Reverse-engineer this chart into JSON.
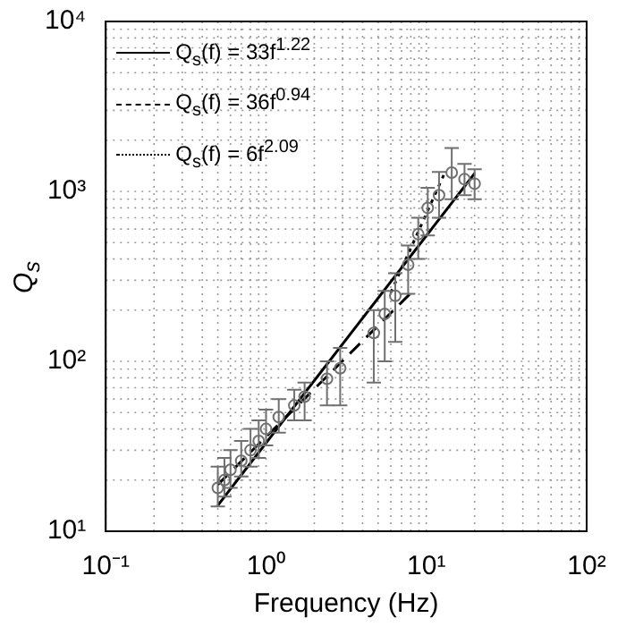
{
  "chart_data": {
    "type": "scatter",
    "xlabel": "Frequency (Hz)",
    "ylabel": "Q$_{s}$",
    "log": "xy",
    "grid": true,
    "legend": "top left",
    "xlim": [
      0.1,
      100
    ],
    "ylim": [
      10,
      10000
    ],
    "xticks": [
      {
        "value": 0.1,
        "label": "10⁻¹"
      },
      {
        "value": 1,
        "label": "10⁰"
      },
      {
        "value": 10,
        "label": "10¹"
      },
      {
        "value": 100,
        "label": "10²"
      }
    ],
    "yticks": [
      {
        "value": 10,
        "label": "10¹"
      },
      {
        "value": 100,
        "label": "10²"
      },
      {
        "value": 1000,
        "label": "10³"
      },
      {
        "value": 10000,
        "label": "10⁴"
      }
    ],
    "series": [
      {
        "color": "#707070",
        "marker": "circle",
        "x": [
          0.5,
          0.55,
          0.6,
          0.7,
          0.8,
          0.9,
          1.0,
          1.2,
          1.5,
          1.74,
          2.4,
          2.9,
          4.7,
          5.5,
          6.4,
          7.7,
          8.9,
          10.2,
          12,
          14.4,
          17.3,
          20
        ],
        "values": [
          18,
          20,
          23,
          26,
          30,
          34,
          40,
          47,
          55,
          62,
          79,
          91,
          147,
          190,
          243,
          370,
          560,
          800,
          950,
          1290,
          1180,
          1110
        ],
        "errors": [
          [
            14,
            24
          ],
          [
            16,
            27
          ],
          [
            18,
            30
          ],
          [
            21,
            34
          ],
          [
            24,
            40
          ],
          [
            27,
            45
          ],
          [
            32,
            52
          ],
          [
            38,
            60
          ],
          [
            45,
            68
          ],
          [
            45,
            75
          ],
          [
            55,
            100
          ],
          [
            55,
            120
          ],
          [
            75,
            200
          ],
          [
            100,
            260
          ],
          [
            130,
            330
          ],
          [
            250,
            480
          ],
          [
            400,
            700
          ],
          [
            550,
            1050
          ],
          [
            700,
            1300
          ],
          [
            900,
            1800
          ],
          [
            950,
            1450
          ],
          [
            900,
            1350
          ]
        ]
      },
      {
        "type": "line",
        "name": "Q$_{s}$(f) = 33f$^{1.22}$",
        "color": "#000000",
        "line_style": "solid",
        "marker": "none",
        "x": [
          0.5,
          20
        ],
        "values": [
          14.2,
          1277
        ]
      },
      {
        "type": "line",
        "name": "Q$_{s}$(f) = 36f$^{0.94}$",
        "color": "#000000",
        "line_style": "dashed",
        "marker": "none",
        "x": [
          0.5,
          8
        ],
        "values": [
          18.8,
          252
        ]
      },
      {
        "type": "line",
        "name": "Q$_{s}$(f) = 6f$^{2.09}$",
        "color": "#000000",
        "line_style": "dotted",
        "marker": "none",
        "x": [
          6,
          13
        ],
        "values": [
          254,
          1280
        ]
      }
    ]
  }
}
